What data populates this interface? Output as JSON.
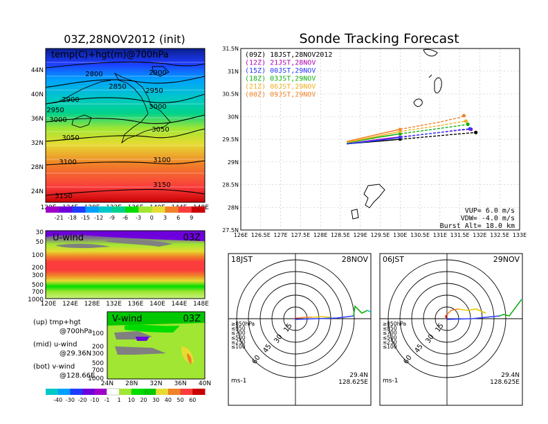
{
  "panel_title": "03Z,28NOV2012 (init)",
  "main_title": "Sonde Tracking Forecast",
  "map": {
    "label": "temp(C)+hgt(m)@700hPa",
    "lat_labels": [
      "44N",
      "40N",
      "36N",
      "32N",
      "28N",
      "24N"
    ],
    "lon_labels": [
      "120E",
      "124E",
      "128E",
      "132E",
      "136E",
      "140E",
      "144E",
      "148E"
    ],
    "contour_labels": [
      "2800",
      "2850",
      "2900",
      "2900",
      "2950",
      "2950",
      "3000",
      "3000",
      "3050",
      "3050",
      "3100",
      "3100",
      "3150",
      "3150"
    ],
    "colorbar_labels": [
      "-21",
      "-18",
      "-15",
      "-12",
      "-9",
      "-6",
      "-3",
      "0",
      "3",
      "6",
      "9"
    ],
    "colorbar_colors": [
      "#a000c8",
      "#6e00dc",
      "#1e3cff",
      "#00a0ff",
      "#00c8c8",
      "#00d28c",
      "#00dc00",
      "#a0e632",
      "#e6dc32",
      "#f08228",
      "#fa3c3c",
      "#c80000"
    ]
  },
  "uwind": {
    "title": "U-wind",
    "time": "03Z",
    "p_labels": [
      "30",
      "50",
      "100",
      "200",
      "300",
      "500",
      "700",
      "1000"
    ],
    "lon_labels": [
      "120E",
      "124E",
      "128E",
      "132E",
      "136E",
      "140E",
      "144E",
      "148E"
    ]
  },
  "vwind": {
    "title": "V-wind",
    "time": "03Z",
    "p_labels": [
      "100",
      "200",
      "300",
      "500",
      "700",
      "1000"
    ],
    "lat_labels": [
      "24N",
      "28N",
      "32N",
      "36N",
      "40N"
    ],
    "colorbar_labels": [
      "-40",
      "-30",
      "-20",
      "-10",
      "-1",
      "1",
      "10",
      "20",
      "30",
      "40",
      "50",
      "60"
    ],
    "colorbar_colors": [
      "#00c8c8",
      "#00a0ff",
      "#1e3cff",
      "#6e00dc",
      "#a000c8",
      "#ffffff",
      "#a0e632",
      "#00dc00",
      "#00c800",
      "#e6dc32",
      "#f08228",
      "#fa3c3c",
      "#c80000"
    ]
  },
  "legend_notes": [
    {
      "line1": "(up) tmp+hgt",
      "line2": "@700hPa"
    },
    {
      "line1": "(mid) u-wind",
      "line2": "@29.36N"
    },
    {
      "line1": "(bot) v-wind",
      "line2": "@128.66E"
    }
  ],
  "chart_data": {
    "type": "line",
    "title": "Sonde Tracking Forecast",
    "xlim": [
      126,
      133
    ],
    "ylim": [
      27.5,
      31.5
    ],
    "x_ticks": [
      "126E",
      "126.5E",
      "127E",
      "127.5E",
      "128E",
      "128.5E",
      "129E",
      "129.5E",
      "130E",
      "130.5E",
      "131E",
      "131.5E",
      "132E",
      "132.5E",
      "133E"
    ],
    "y_ticks": [
      "27.5N",
      "28N",
      "28.5N",
      "29N",
      "29.5N",
      "30N",
      "30.5N",
      "31N",
      "31.5N"
    ],
    "grid": true,
    "legend_position": "top-left",
    "series": [
      {
        "name": "(09Z)  18JST,28NOV2012",
        "color": "#000000",
        "x": [
          128.66,
          129.5,
          130.0,
          130.5,
          131.0,
          131.5,
          131.9
        ],
        "y": [
          29.4,
          29.46,
          29.5,
          29.54,
          29.58,
          29.62,
          29.65
        ]
      },
      {
        "name": "(12Z)  21JST,28NOV",
        "color": "#b000b0",
        "x": [
          128.66,
          129.5,
          130.0,
          130.5,
          131.0,
          131.5,
          131.78
        ],
        "y": [
          29.4,
          29.5,
          29.55,
          29.6,
          29.65,
          29.7,
          29.72
        ]
      },
      {
        "name": "(15Z)  00JST,29NOV",
        "color": "#2a3cff",
        "x": [
          128.66,
          129.5,
          130.0,
          130.5,
          131.0,
          131.5,
          131.75
        ],
        "y": [
          29.4,
          29.48,
          29.54,
          29.6,
          29.65,
          29.71,
          29.73
        ]
      },
      {
        "name": "(18Z)  03JST,29NOV",
        "color": "#10b010",
        "x": [
          128.66,
          129.5,
          130.0,
          130.5,
          131.0,
          131.5,
          131.7
        ],
        "y": [
          29.42,
          29.55,
          29.62,
          29.68,
          29.74,
          29.8,
          29.83
        ]
      },
      {
        "name": "(21Z)  06JST,29NOV",
        "color": "#f0b020",
        "x": [
          128.66,
          129.5,
          130.0,
          130.5,
          131.0,
          131.5,
          131.65
        ],
        "y": [
          29.43,
          29.58,
          29.67,
          29.74,
          29.8,
          29.88,
          29.9
        ]
      },
      {
        "name": "(00Z)  09JST,29NOV",
        "color": "#f08228",
        "x": [
          128.66,
          129.5,
          130.0,
          130.5,
          131.0,
          131.5,
          131.6
        ],
        "y": [
          29.45,
          29.62,
          29.72,
          29.8,
          29.88,
          29.98,
          30.02
        ]
      }
    ],
    "annotations": [
      "VUP=  6.0  m/s",
      "VDW= -4.0  m/s",
      "Burst Alt=  18.0  km"
    ]
  },
  "hodographs": [
    {
      "left_label": "18JST",
      "right_label": "28NOV",
      "lat": "29.4N",
      "lon": "128.625E",
      "unit": "ms-1"
    },
    {
      "left_label": "06JST",
      "right_label": "29NOV",
      "lat": "29.4N",
      "lon": "128.625E",
      "unit": "ms-1"
    }
  ],
  "hodo_rings": [
    "15",
    "30",
    "45",
    "60"
  ],
  "hodo_legend": [
    {
      "text": "≥850hPa",
      "color": "#e00000"
    },
    {
      "text": "≤850",
      "color": "#f08228"
    },
    {
      "text": "≤700",
      "color": "#e6c800"
    },
    {
      "text": "≤500",
      "color": "#10b010"
    },
    {
      "text": "≤250",
      "color": "#00c8c8"
    },
    {
      "text": "≤100",
      "color": "#2a3cff"
    }
  ]
}
